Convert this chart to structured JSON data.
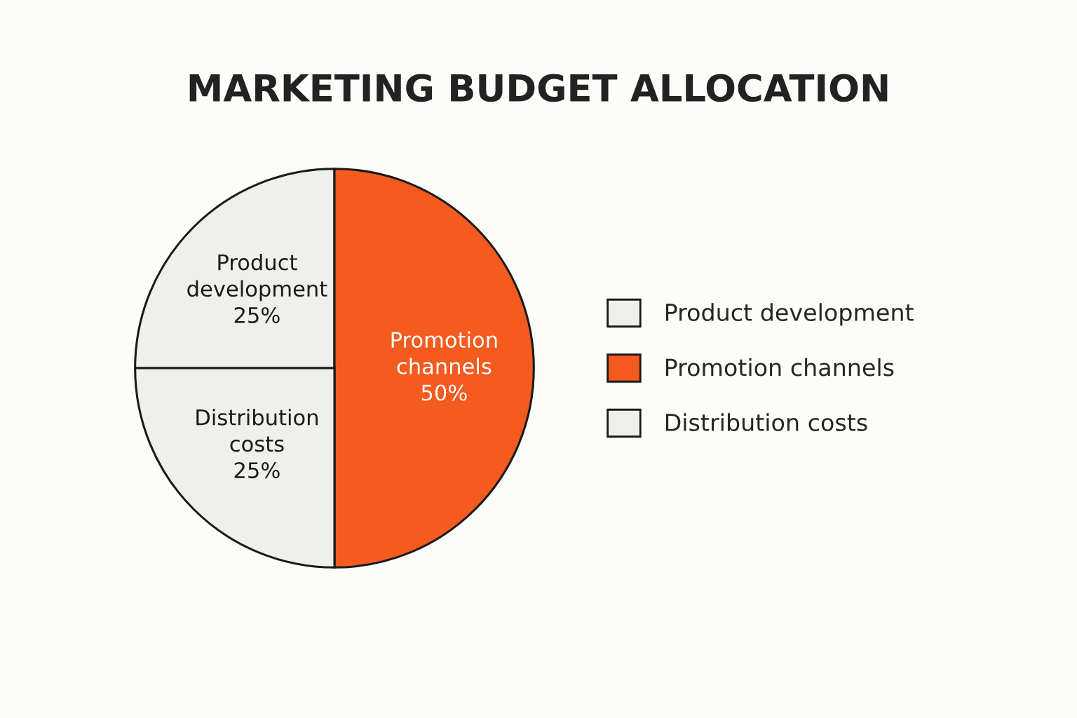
{
  "chart_data": {
    "type": "pie",
    "title": "MARKETING BUDGET ALLOCATION",
    "categories": [
      "Product development",
      "Promotion channels",
      "Distribution costs"
    ],
    "values": [
      25,
      50,
      25
    ],
    "value_labels": [
      "25%",
      "50%",
      "25%"
    ],
    "colors": [
      "#efefec",
      "#f55a1f",
      "#efefec"
    ],
    "legend": "right"
  }
}
